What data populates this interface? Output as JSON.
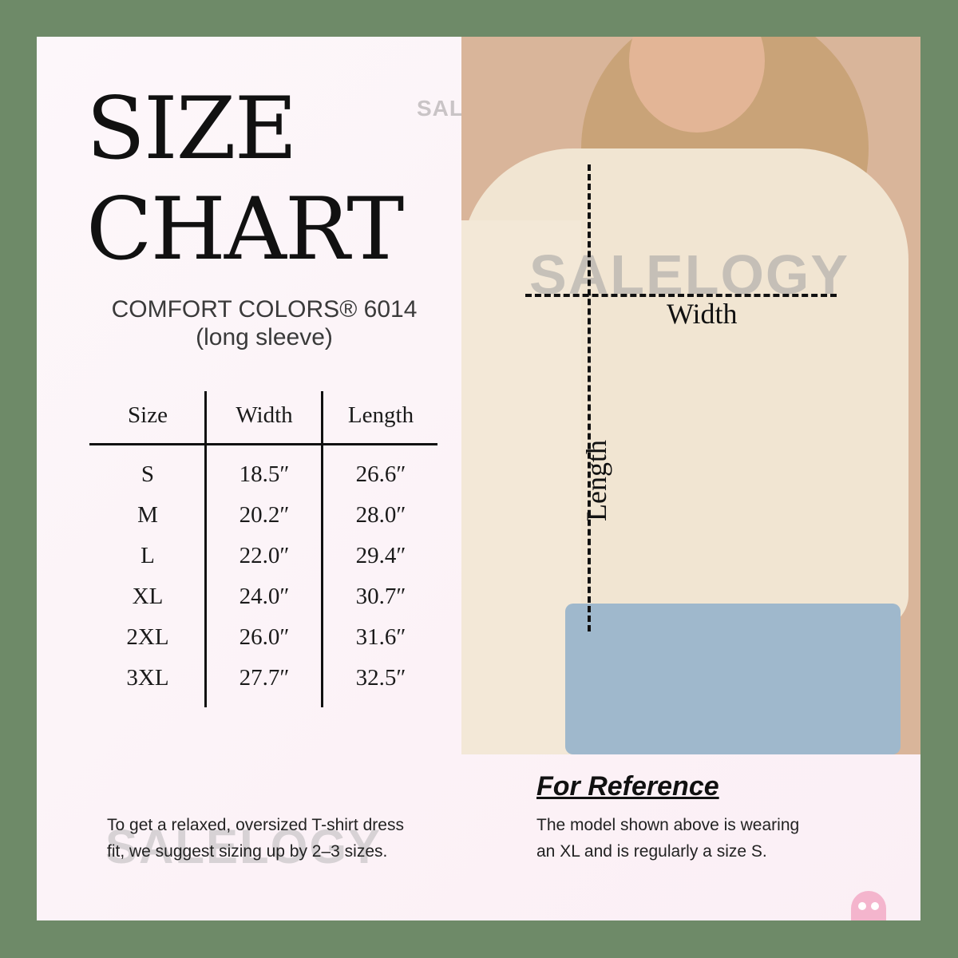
{
  "title": {
    "line1": "SIZE",
    "line2": "CHART"
  },
  "product": {
    "name": "COMFORT COLORS® 6014",
    "variant": "(long sleeve)"
  },
  "watermark": "SALELOGY",
  "table": {
    "headers": [
      "Size",
      "Width",
      "Length"
    ],
    "rows": [
      [
        "S",
        "18.5″",
        "26.6″"
      ],
      [
        "M",
        "20.2″",
        "28.0″"
      ],
      [
        "L",
        "22.0″",
        "29.4″"
      ],
      [
        "XL",
        "24.0″",
        "30.7″"
      ],
      [
        "2XL",
        "26.0″",
        "31.6″"
      ],
      [
        "3XL",
        "27.7″",
        "32.5″"
      ]
    ]
  },
  "diagram": {
    "width_label": "Width",
    "length_label": "Length"
  },
  "fit_note": {
    "line1": "To get a relaxed, oversized T-shirt dress",
    "line2": "fit, we suggest sizing up by 2–3 sizes."
  },
  "reference": {
    "heading": "For Reference",
    "line1": "The model shown above is wearing",
    "line2": "an XL and is regularly a size S."
  },
  "colors": {
    "frame": "#6e8a68",
    "panel": "#fbf2f6",
    "text": "#111111",
    "logo": "#f4b5cd"
  },
  "logo_icon": "pink-ghost-icon"
}
